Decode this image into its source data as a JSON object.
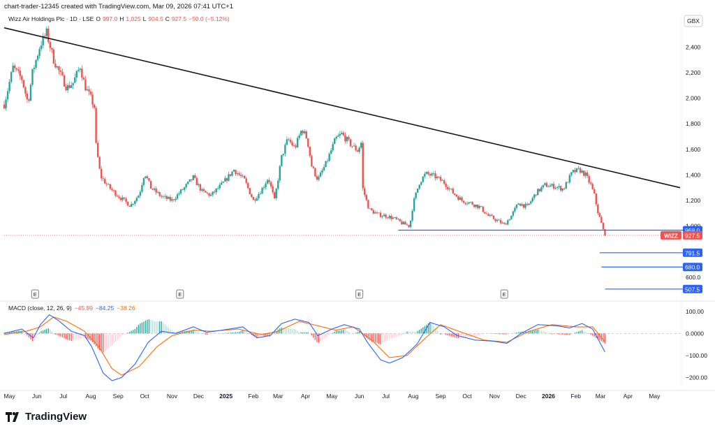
{
  "header": {
    "created": "chart-trader-12345 created with TradingView.com, Mar 09, 2026 07:41 UTC+1"
  },
  "legend": {
    "symbol": "Wizz Air Holdings Plc · 1D · LSE",
    "open_label": "O",
    "open": "997.0",
    "high_label": "H",
    "high": "1,025",
    "low_label": "L",
    "low": "904.5",
    "close_label": "C",
    "close": "927.5",
    "change": "−50.0 (−5.12%)"
  },
  "currency": "GBX",
  "brand": {
    "name": "TradingView"
  },
  "colors": {
    "up": "#26a69a",
    "down": "#ef5350",
    "trendline": "#131722",
    "level": "#2962ff",
    "macd": "#2962ff",
    "signal": "#ff6d00"
  },
  "chart_data": [
    {
      "type": "candlestick",
      "series_name": "WIZZ",
      "y_axis_ticks": [
        "2,400",
        "2,200",
        "2,000",
        "1,800",
        "1,600",
        "1,400",
        "1,200",
        "1,000",
        "600.0"
      ],
      "y_axis_values": [
        2400,
        2200,
        2000,
        1800,
        1600,
        1400,
        1200,
        1000,
        600
      ],
      "ylim": [
        430,
        2560
      ],
      "x_axis_labels": [
        "May",
        "Jun",
        "Jul",
        "Aug",
        "Sep",
        "Oct",
        "Nov",
        "Dec",
        "2025",
        "Feb",
        "Mar",
        "Apr",
        "May",
        "Jun",
        "Jul",
        "Aug",
        "Sep",
        "Oct",
        "Nov",
        "Dec",
        "2026",
        "Feb",
        "Mar",
        "Apr",
        "May"
      ],
      "xlim": [
        "2024-04-25",
        "2026-05-30"
      ],
      "earnings_markers": [
        {
          "date": "2024-05-30",
          "label": "E"
        },
        {
          "date": "2024-11-10",
          "label": "E"
        },
        {
          "date": "2025-06-01",
          "label": "E"
        },
        {
          "date": "2025-11-12",
          "label": "E"
        }
      ],
      "price_path": [
        {
          "date": "2024-04-25",
          "price": 1950
        },
        {
          "date": "2024-05-05",
          "price": 2240
        },
        {
          "date": "2024-05-15",
          "price": 2150
        },
        {
          "date": "2024-05-22",
          "price": 1960
        },
        {
          "date": "2024-05-27",
          "price": 2200
        },
        {
          "date": "2024-06-05",
          "price": 2420
        },
        {
          "date": "2024-06-12",
          "price": 2510
        },
        {
          "date": "2024-06-20",
          "price": 2300
        },
        {
          "date": "2024-06-28",
          "price": 2180
        },
        {
          "date": "2024-07-05",
          "price": 2080
        },
        {
          "date": "2024-07-12",
          "price": 2120
        },
        {
          "date": "2024-07-20",
          "price": 2250
        },
        {
          "date": "2024-07-25",
          "price": 2100
        },
        {
          "date": "2024-08-01",
          "price": 2000
        },
        {
          "date": "2024-08-05",
          "price": 1930
        },
        {
          "date": "2024-08-06",
          "price": 1680
        },
        {
          "date": "2024-08-12",
          "price": 1390
        },
        {
          "date": "2024-08-22",
          "price": 1300
        },
        {
          "date": "2024-09-02",
          "price": 1230
        },
        {
          "date": "2024-09-15",
          "price": 1160
        },
        {
          "date": "2024-09-25",
          "price": 1250
        },
        {
          "date": "2024-10-01",
          "price": 1420
        },
        {
          "date": "2024-10-08",
          "price": 1300
        },
        {
          "date": "2024-10-20",
          "price": 1230
        },
        {
          "date": "2024-11-01",
          "price": 1200
        },
        {
          "date": "2024-11-15",
          "price": 1300
        },
        {
          "date": "2024-11-25",
          "price": 1380
        },
        {
          "date": "2024-12-05",
          "price": 1270
        },
        {
          "date": "2024-12-15",
          "price": 1240
        },
        {
          "date": "2024-12-28",
          "price": 1330
        },
        {
          "date": "2025-01-10",
          "price": 1440
        },
        {
          "date": "2025-01-22",
          "price": 1360
        },
        {
          "date": "2025-02-01",
          "price": 1200
        },
        {
          "date": "2025-02-10",
          "price": 1280
        },
        {
          "date": "2025-02-18",
          "price": 1380
        },
        {
          "date": "2025-02-25",
          "price": 1200
        },
        {
          "date": "2025-03-05",
          "price": 1540
        },
        {
          "date": "2025-03-12",
          "price": 1680
        },
        {
          "date": "2025-03-20",
          "price": 1610
        },
        {
          "date": "2025-03-28",
          "price": 1760
        },
        {
          "date": "2025-04-03",
          "price": 1680
        },
        {
          "date": "2025-04-08",
          "price": 1470
        },
        {
          "date": "2025-04-15",
          "price": 1360
        },
        {
          "date": "2025-04-25",
          "price": 1500
        },
        {
          "date": "2025-05-05",
          "price": 1680
        },
        {
          "date": "2025-05-12",
          "price": 1720
        },
        {
          "date": "2025-05-22",
          "price": 1640
        },
        {
          "date": "2025-05-30",
          "price": 1590
        },
        {
          "date": "2025-06-03",
          "price": 1650
        },
        {
          "date": "2025-06-05",
          "price": 1290
        },
        {
          "date": "2025-06-12",
          "price": 1130
        },
        {
          "date": "2025-06-22",
          "price": 1090
        },
        {
          "date": "2025-07-01",
          "price": 1080
        },
        {
          "date": "2025-07-10",
          "price": 1060
        },
        {
          "date": "2025-07-20",
          "price": 1020
        },
        {
          "date": "2025-07-28",
          "price": 1000
        },
        {
          "date": "2025-08-01",
          "price": 1180
        },
        {
          "date": "2025-08-08",
          "price": 1340
        },
        {
          "date": "2025-08-15",
          "price": 1410
        },
        {
          "date": "2025-08-25",
          "price": 1390
        },
        {
          "date": "2025-09-05",
          "price": 1340
        },
        {
          "date": "2025-09-15",
          "price": 1260
        },
        {
          "date": "2025-09-25",
          "price": 1200
        },
        {
          "date": "2025-10-05",
          "price": 1180
        },
        {
          "date": "2025-10-15",
          "price": 1150
        },
        {
          "date": "2025-10-25",
          "price": 1080
        },
        {
          "date": "2025-11-05",
          "price": 1040
        },
        {
          "date": "2025-11-12",
          "price": 1010
        },
        {
          "date": "2025-11-20",
          "price": 1080
        },
        {
          "date": "2025-11-28",
          "price": 1180
        },
        {
          "date": "2025-12-08",
          "price": 1150
        },
        {
          "date": "2025-12-18",
          "price": 1260
        },
        {
          "date": "2025-12-28",
          "price": 1320
        },
        {
          "date": "2026-01-08",
          "price": 1310
        },
        {
          "date": "2026-01-18",
          "price": 1290
        },
        {
          "date": "2026-01-28",
          "price": 1420
        },
        {
          "date": "2026-02-05",
          "price": 1440
        },
        {
          "date": "2026-02-12",
          "price": 1400
        },
        {
          "date": "2026-02-18",
          "price": 1320
        },
        {
          "date": "2026-02-22",
          "price": 1240
        },
        {
          "date": "2026-02-26",
          "price": 1110
        },
        {
          "date": "2026-03-02",
          "price": 1020
        },
        {
          "date": "2026-03-04",
          "price": 968
        },
        {
          "date": "2026-03-06",
          "price": 927.5
        }
      ],
      "trendline": [
        {
          "date": "2024-04-25",
          "price": 2550
        },
        {
          "date": "2026-05-30",
          "price": 1300
        }
      ],
      "horizontal_levels": [
        {
          "value": 968.0,
          "label": "968.0",
          "from_date": "2025-07-15"
        },
        {
          "value": 791.5,
          "label": "791.5",
          "from_date": "2026-02-28"
        },
        {
          "value": 680.0,
          "label": "680.0",
          "from_date": "2026-03-02"
        },
        {
          "value": 507.5,
          "label": "507.5",
          "from_date": "2026-03-06"
        }
      ],
      "last_price": {
        "value": 927.5,
        "label": "927.5",
        "symbol": "WIZZ"
      }
    },
    {
      "type": "macd",
      "title": "MACD (close, 12, 26, 9)",
      "values": [
        "−45.99",
        "−84.25",
        "−38.26"
      ],
      "y_axis_ticks": [
        "100.00",
        "0.0000",
        "−100.00",
        "−200.00"
      ],
      "y_axis_values": [
        100,
        0,
        -100,
        -200
      ],
      "ylim": [
        -250,
        125
      ],
      "macd_path": [
        {
          "date": "2024-04-25",
          "value": 0
        },
        {
          "date": "2024-05-15",
          "value": 20
        },
        {
          "date": "2024-05-28",
          "value": -20
        },
        {
          "date": "2024-06-05",
          "value": 40
        },
        {
          "date": "2024-06-15",
          "value": 85
        },
        {
          "date": "2024-06-25",
          "value": 60
        },
        {
          "date": "2024-07-10",
          "value": 10
        },
        {
          "date": "2024-07-25",
          "value": -10
        },
        {
          "date": "2024-08-02",
          "value": -60
        },
        {
          "date": "2024-08-15",
          "value": -180
        },
        {
          "date": "2024-08-25",
          "value": -215
        },
        {
          "date": "2024-09-05",
          "value": -200
        },
        {
          "date": "2024-09-20",
          "value": -140
        },
        {
          "date": "2024-10-05",
          "value": -40
        },
        {
          "date": "2024-10-20",
          "value": 10
        },
        {
          "date": "2024-11-05",
          "value": 0
        },
        {
          "date": "2024-11-25",
          "value": 30
        },
        {
          "date": "2024-12-10",
          "value": 5
        },
        {
          "date": "2025-01-05",
          "value": 20
        },
        {
          "date": "2025-01-20",
          "value": 30
        },
        {
          "date": "2025-02-05",
          "value": -20
        },
        {
          "date": "2025-02-20",
          "value": -10
        },
        {
          "date": "2025-03-05",
          "value": 45
        },
        {
          "date": "2025-03-20",
          "value": 65
        },
        {
          "date": "2025-04-05",
          "value": 50
        },
        {
          "date": "2025-04-15",
          "value": -10
        },
        {
          "date": "2025-05-01",
          "value": 20
        },
        {
          "date": "2025-05-15",
          "value": 40
        },
        {
          "date": "2025-06-01",
          "value": 20
        },
        {
          "date": "2025-06-10",
          "value": -40
        },
        {
          "date": "2025-06-25",
          "value": -120
        },
        {
          "date": "2025-07-05",
          "value": -135
        },
        {
          "date": "2025-07-20",
          "value": -110
        },
        {
          "date": "2025-08-05",
          "value": -50
        },
        {
          "date": "2025-08-20",
          "value": 50
        },
        {
          "date": "2025-09-05",
          "value": 30
        },
        {
          "date": "2025-09-20",
          "value": -10
        },
        {
          "date": "2025-10-10",
          "value": -30
        },
        {
          "date": "2025-10-30",
          "value": -35
        },
        {
          "date": "2025-11-15",
          "value": -45
        },
        {
          "date": "2025-12-01",
          "value": 0
        },
        {
          "date": "2025-12-20",
          "value": 40
        },
        {
          "date": "2026-01-10",
          "value": 35
        },
        {
          "date": "2026-01-25",
          "value": 25
        },
        {
          "date": "2026-02-08",
          "value": 45
        },
        {
          "date": "2026-02-20",
          "value": 20
        },
        {
          "date": "2026-03-06",
          "value": -84.25
        }
      ],
      "signal_path": [
        {
          "date": "2024-04-25",
          "value": -5
        },
        {
          "date": "2024-05-20",
          "value": 10
        },
        {
          "date": "2024-06-05",
          "value": 30
        },
        {
          "date": "2024-06-20",
          "value": 75
        },
        {
          "date": "2024-07-05",
          "value": 55
        },
        {
          "date": "2024-07-25",
          "value": 10
        },
        {
          "date": "2024-08-10",
          "value": -60
        },
        {
          "date": "2024-08-25",
          "value": -160
        },
        {
          "date": "2024-09-05",
          "value": -190
        },
        {
          "date": "2024-09-25",
          "value": -150
        },
        {
          "date": "2024-10-15",
          "value": -60
        },
        {
          "date": "2024-11-01",
          "value": -10
        },
        {
          "date": "2024-11-25",
          "value": 15
        },
        {
          "date": "2024-12-15",
          "value": 10
        },
        {
          "date": "2025-01-15",
          "value": 20
        },
        {
          "date": "2025-02-10",
          "value": -5
        },
        {
          "date": "2025-03-01",
          "value": 10
        },
        {
          "date": "2025-03-25",
          "value": 55
        },
        {
          "date": "2025-04-15",
          "value": 35
        },
        {
          "date": "2025-05-05",
          "value": 15
        },
        {
          "date": "2025-05-25",
          "value": 30
        },
        {
          "date": "2025-06-15",
          "value": -30
        },
        {
          "date": "2025-07-05",
          "value": -110
        },
        {
          "date": "2025-07-25",
          "value": -100
        },
        {
          "date": "2025-08-15",
          "value": -20
        },
        {
          "date": "2025-09-01",
          "value": 40
        },
        {
          "date": "2025-09-25",
          "value": 5
        },
        {
          "date": "2025-10-20",
          "value": -30
        },
        {
          "date": "2025-11-15",
          "value": -40
        },
        {
          "date": "2025-12-10",
          "value": 10
        },
        {
          "date": "2026-01-05",
          "value": 40
        },
        {
          "date": "2026-02-01",
          "value": 30
        },
        {
          "date": "2026-02-20",
          "value": 30
        },
        {
          "date": "2026-03-06",
          "value": -38.26
        }
      ]
    }
  ]
}
